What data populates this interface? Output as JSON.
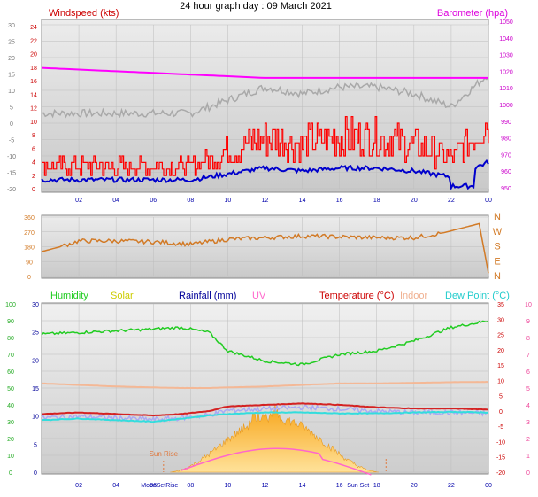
{
  "title": "24 hour graph day : 09 March 2021",
  "x_ticks": [
    "02",
    "04",
    "06",
    "08",
    "10",
    "12",
    "14",
    "16",
    "18",
    "20",
    "22",
    "00"
  ],
  "colors": {
    "panel_bg": "#d4d4d4",
    "wind_red": "#ff0000",
    "wind_blue": "#0000cc",
    "baro": "#ff00ff",
    "gray": "#a8a8a8",
    "dir": "#d27a26",
    "humidity": "#22cc22",
    "solar": "#ffb020",
    "rain": "#000099",
    "uv": "#ff66cc",
    "temp": "#cc0000",
    "indoor": "#f4b896",
    "dew": "#33dddd",
    "tick_blue": "#0000aa"
  },
  "panel1": {
    "left_title": "Windspeed (kts)",
    "right_title": "Barometer (hpa)",
    "outer_left_ticks": [
      "30",
      "25",
      "20",
      "15",
      "10",
      "5",
      "0",
      "-5",
      "-10",
      "-15",
      "-20"
    ],
    "inner_left_ticks": [
      "24",
      "22",
      "20",
      "18",
      "16",
      "14",
      "12",
      "10",
      "8",
      "6",
      "4",
      "2",
      "0"
    ],
    "right_ticks": [
      "1050",
      "1040",
      "1030",
      "1020",
      "1010",
      "1000",
      "990",
      "980",
      "970",
      "960",
      "950"
    ]
  },
  "panel2": {
    "left_ticks": [
      "360",
      "270",
      "180",
      "90",
      "0"
    ],
    "right_ticks": [
      "N",
      "W",
      "S",
      "E",
      "N"
    ]
  },
  "panel3": {
    "legend": [
      {
        "label": "Humidity",
        "color": "#22cc22"
      },
      {
        "label": "Solar",
        "color": "#cccc00"
      },
      {
        "label": "Rainfall (mm)",
        "color": "#000099"
      },
      {
        "label": "UV",
        "color": "#ff66cc"
      },
      {
        "label": "Temperature (°C)",
        "color": "#cc0000"
      },
      {
        "label": "Indoor",
        "color": "#f0b090"
      },
      {
        "label": "Dew Point (°C)",
        "color": "#22cccc"
      }
    ],
    "far_left_ticks": [
      "100",
      "90",
      "80",
      "70",
      "60",
      "50",
      "40",
      "30",
      "20",
      "10",
      "0"
    ],
    "inner_left_ticks": [
      "30",
      "25",
      "20",
      "15",
      "10",
      "5",
      "0"
    ],
    "far_right_ticks": [
      "10",
      "9",
      "8",
      "7",
      "6",
      "5",
      "4",
      "3",
      "2",
      "1",
      "0"
    ],
    "inner_right_ticks": [
      "35",
      "30",
      "25",
      "20",
      "15",
      "10",
      "5",
      "0",
      "-5",
      "-10",
      "-15",
      "-20"
    ],
    "annotations": {
      "sun_rise": "Sun Rise",
      "moon_rise": "MoonSet",
      "moon_set_overlap": "Rise",
      "sun_set": "Sun Set"
    }
  },
  "chart_data": [
    {
      "type": "line",
      "title": "Windspeed (kts) / Barometer (hpa)",
      "x": [
        0,
        2,
        4,
        6,
        8,
        10,
        12,
        14,
        16,
        18,
        20,
        22,
        24
      ],
      "series": [
        {
          "name": "Windspeed (kts)",
          "values": [
            3,
            3,
            3,
            3,
            3,
            5,
            7,
            6,
            7,
            7,
            6,
            4,
            9
          ]
        },
        {
          "name": "Barometer (hpa)",
          "values": [
            1022,
            1021,
            1020,
            1019,
            1018,
            1017,
            1016,
            1016,
            1016,
            1016,
            1016,
            1016,
            1016
          ]
        }
      ],
      "ylim_left": [
        0,
        25
      ],
      "ylim_right": [
        950,
        1050
      ]
    },
    {
      "type": "line",
      "x": [
        0,
        1,
        2,
        4,
        6,
        8,
        10,
        12,
        14,
        16,
        18,
        20,
        21.6,
        23.5,
        24
      ],
      "series": [
        {
          "name": "Wind direction",
          "values": [
            150,
            180,
            215,
            215,
            210,
            195,
            225,
            235,
            245,
            240,
            235,
            235,
            265,
            320,
            20
          ]
        }
      ],
      "ylim": [
        0,
        360
      ]
    },
    {
      "type": "line",
      "x": [
        0,
        2,
        4,
        6,
        7.5,
        9,
        10,
        12,
        14,
        16,
        18,
        20,
        22,
        24
      ],
      "series": [
        {
          "name": "Humidity",
          "values": [
            82,
            83,
            84,
            85,
            86,
            83,
            72,
            66,
            64,
            70,
            72,
            78,
            86,
            90
          ]
        },
        {
          "name": "Temperature (°C)",
          "values": [
            -1,
            -0.5,
            -1,
            -1.5,
            -1,
            0,
            1.5,
            2,
            2.5,
            2,
            1.2,
            0.8,
            0.8,
            0.5
          ]
        },
        {
          "name": "Indoor",
          "values": [
            9,
            8.5,
            8,
            7.7,
            7.5,
            7.5,
            7.7,
            8,
            8.5,
            9,
            9,
            9.2,
            9.4,
            9.5
          ]
        },
        {
          "name": "Dew Point (°C)",
          "values": [
            -3,
            -2.5,
            -3,
            -3.5,
            -2.5,
            -1.5,
            -1,
            -0.5,
            -0.5,
            -0.8,
            -0.8,
            -0.5,
            -0.3,
            -0.5
          ]
        }
      ],
      "ylim_humidity": [
        0,
        100
      ],
      "ylim_temp": [
        -20,
        35
      ]
    }
  ]
}
